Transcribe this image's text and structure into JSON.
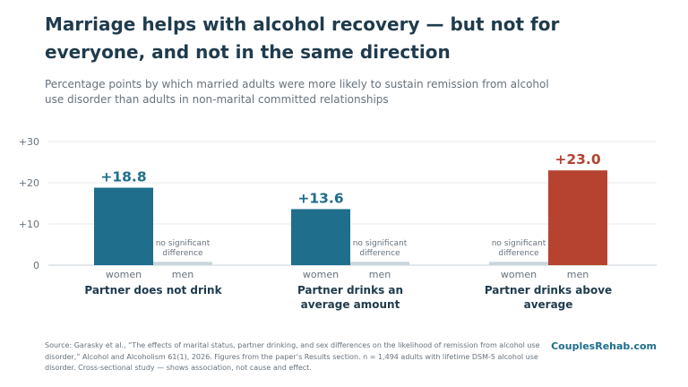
{
  "title": "Marriage helps with alcohol recovery — but not for everyone, and not in the same direction",
  "subtitle": "Percentage points by which married adults were more likely to sustain remission from alcohol use disorder than adults in non-marital committed relationships",
  "source": "Source: Garasky et al., “The effects of marital status, partner drinking, and sex differences on the likelihood of remission from alcohol use disorder,” Alcohol and Alcoholism 61(1), 2026. Figures from the paper’s Results section. n = 1,494 adults with lifetime DSM-5 alcohol use disorder. Cross-sectional study — shows association, not cause and effect.",
  "brand": "CouplesRehab.com",
  "colors": {
    "women": "#1e6e8c",
    "men_significant": "#b5432f",
    "not_significant": "#c9d6dc",
    "title": "#1f3b4d",
    "muted": "#66727c",
    "grid": "#e6eaed"
  },
  "chart_data": {
    "type": "bar",
    "y_ticks": [
      "0",
      "+10",
      "+20",
      "+30"
    ],
    "y_tick_values": [
      0,
      10,
      20,
      30
    ],
    "ylim": [
      0,
      30
    ],
    "grid": true,
    "groups": [
      {
        "label": "Partner does not drink",
        "bars": [
          {
            "sex": "women",
            "value": 18.8,
            "label": "+18.8",
            "significant": true
          },
          {
            "sex": "men",
            "value": 0.8,
            "label": "no significant difference",
            "significant": false
          }
        ]
      },
      {
        "label": "Partner drinks an average amount",
        "bars": [
          {
            "sex": "women",
            "value": 13.6,
            "label": "+13.6",
            "significant": true
          },
          {
            "sex": "men",
            "value": 0.8,
            "label": "no significant difference",
            "significant": false
          }
        ]
      },
      {
        "label": "Partner drinks above average",
        "bars": [
          {
            "sex": "women",
            "value": 0.8,
            "label": "no significant difference",
            "significant": false
          },
          {
            "sex": "men",
            "value": 23.0,
            "label": "+23.0",
            "significant": true
          }
        ]
      }
    ]
  }
}
